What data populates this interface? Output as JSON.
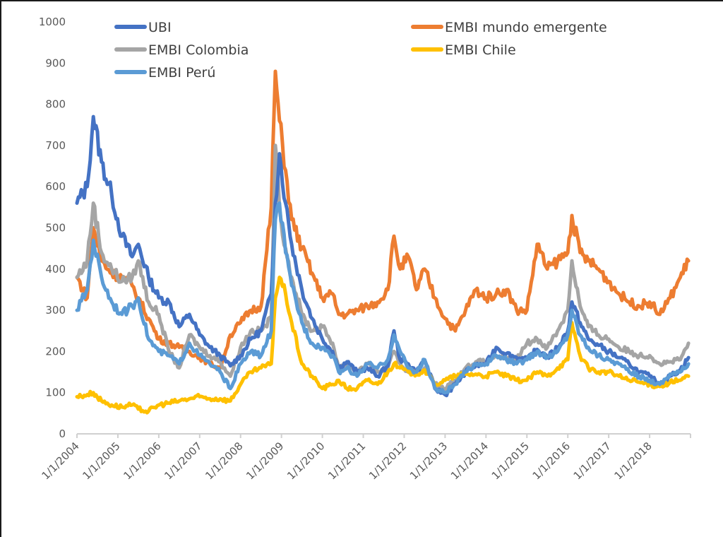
{
  "chart_data": {
    "type": "line",
    "title": "",
    "xlabel": "",
    "ylabel": "",
    "ylim": [
      0,
      1000
    ],
    "yticks": [
      "0",
      "100",
      "200",
      "300",
      "400",
      "500",
      "600",
      "700",
      "800",
      "900",
      "1000"
    ],
    "xlim": [
      2004.0,
      2019.0
    ],
    "xticks": [
      "1/1/2004",
      "1/1/2005",
      "1/1/2006",
      "1/1/2007",
      "1/1/2008",
      "1/1/2009",
      "1/1/2010",
      "1/1/2011",
      "1/1/2012",
      "1/1/2013",
      "1/1/2014",
      "1/1/2015",
      "1/1/2016",
      "1/1/2017",
      "1/1/2018"
    ],
    "grid": false,
    "legend_position": "top",
    "x": [
      2004.0,
      2004.25,
      2004.4,
      2004.6,
      2004.85,
      2005.1,
      2005.35,
      2005.5,
      2005.75,
      2006.0,
      2006.25,
      2006.5,
      2006.75,
      2007.0,
      2007.25,
      2007.5,
      2007.75,
      2008.0,
      2008.25,
      2008.5,
      2008.75,
      2008.85,
      2008.95,
      2009.1,
      2009.25,
      2009.5,
      2009.75,
      2010.0,
      2010.25,
      2010.4,
      2010.6,
      2010.85,
      2011.1,
      2011.35,
      2011.6,
      2011.75,
      2011.9,
      2012.1,
      2012.3,
      2012.5,
      2012.75,
      2013.0,
      2013.25,
      2013.5,
      2013.75,
      2014.0,
      2014.25,
      2014.5,
      2014.75,
      2015.0,
      2015.25,
      2015.5,
      2015.75,
      2016.0,
      2016.1,
      2016.3,
      2016.5,
      2016.75,
      2017.0,
      2017.25,
      2017.5,
      2017.75,
      2018.0,
      2018.25,
      2018.5,
      2018.75,
      2018.95
    ],
    "series": [
      {
        "name": "UBI",
        "color": "#4472C4",
        "values": [
          560,
          600,
          770,
          660,
          580,
          480,
          430,
          460,
          380,
          330,
          320,
          260,
          290,
          240,
          210,
          190,
          165,
          190,
          230,
          250,
          340,
          560,
          680,
          560,
          460,
          350,
          280,
          230,
          200,
          160,
          175,
          150,
          160,
          140,
          165,
          250,
          180,
          170,
          150,
          180,
          110,
          95,
          120,
          150,
          165,
          170,
          210,
          195,
          185,
          180,
          205,
          185,
          210,
          250,
          320,
          270,
          230,
          215,
          200,
          185,
          170,
          150,
          140,
          120,
          140,
          155,
          185
        ]
      },
      {
        "name": "EMBI mundo emergente",
        "color": "#ED7D31",
        "values": [
          380,
          330,
          500,
          420,
          390,
          380,
          360,
          330,
          280,
          230,
          220,
          210,
          200,
          185,
          170,
          160,
          240,
          270,
          300,
          310,
          550,
          880,
          760,
          640,
          520,
          450,
          390,
          330,
          340,
          290,
          290,
          300,
          310,
          320,
          350,
          480,
          400,
          430,
          350,
          400,
          330,
          280,
          250,
          300,
          350,
          330,
          340,
          350,
          300,
          300,
          460,
          400,
          420,
          440,
          530,
          440,
          420,
          400,
          370,
          340,
          320,
          310,
          320,
          290,
          330,
          380,
          420
        ]
      },
      {
        "name": "EMBI Colombia",
        "color": "#A5A5A5",
        "values": [
          380,
          420,
          560,
          440,
          400,
          370,
          380,
          420,
          320,
          290,
          200,
          160,
          240,
          210,
          190,
          175,
          140,
          210,
          250,
          250,
          280,
          700,
          550,
          450,
          380,
          290,
          250,
          260,
          220,
          160,
          170,
          150,
          170,
          150,
          160,
          200,
          170,
          150,
          150,
          160,
          120,
          110,
          130,
          160,
          175,
          175,
          190,
          180,
          180,
          220,
          230,
          210,
          250,
          300,
          420,
          310,
          260,
          240,
          230,
          210,
          200,
          190,
          190,
          170,
          175,
          180,
          220
        ]
      },
      {
        "name": "EMBI Chile",
        "color": "#FFC000",
        "values": [
          90,
          95,
          100,
          80,
          70,
          65,
          70,
          60,
          55,
          70,
          75,
          80,
          85,
          90,
          85,
          85,
          80,
          120,
          150,
          160,
          170,
          330,
          380,
          340,
          270,
          170,
          140,
          110,
          120,
          130,
          110,
          110,
          130,
          120,
          150,
          170,
          160,
          150,
          145,
          155,
          120,
          130,
          140,
          145,
          145,
          140,
          150,
          140,
          130,
          130,
          150,
          140,
          160,
          180,
          270,
          190,
          160,
          150,
          150,
          140,
          130,
          125,
          120,
          115,
          125,
          130,
          140
        ]
      },
      {
        "name": "EMBI Perú",
        "color": "#5B9BD5",
        "values": [
          300,
          350,
          470,
          380,
          320,
          290,
          310,
          330,
          230,
          200,
          190,
          170,
          220,
          190,
          170,
          150,
          110,
          170,
          200,
          190,
          250,
          520,
          560,
          440,
          360,
          270,
          220,
          210,
          190,
          150,
          160,
          140,
          170,
          160,
          180,
          240,
          200,
          160,
          150,
          180,
          110,
          100,
          120,
          150,
          170,
          170,
          190,
          180,
          170,
          180,
          200,
          185,
          200,
          240,
          300,
          240,
          210,
          190,
          180,
          170,
          150,
          140,
          130,
          120,
          145,
          150,
          170
        ]
      }
    ]
  }
}
